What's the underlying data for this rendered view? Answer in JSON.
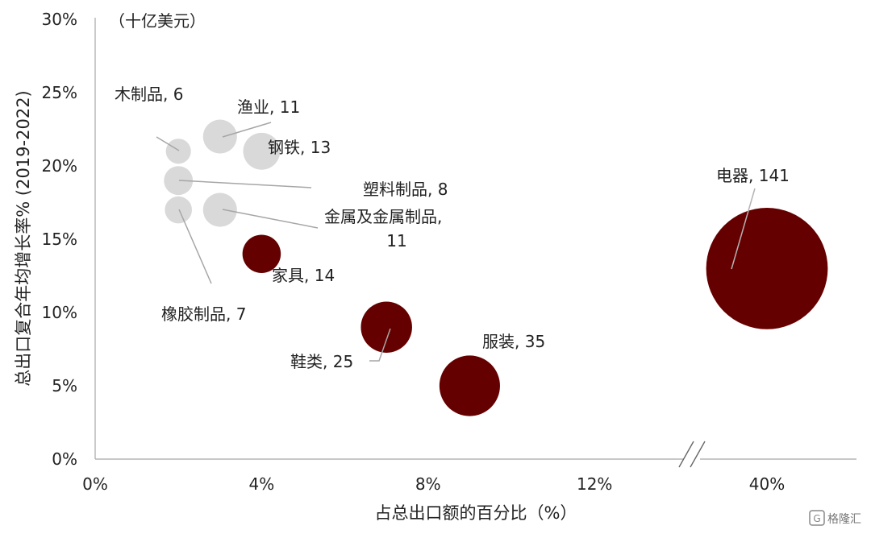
{
  "chart_data": {
    "type": "scatter",
    "subtype": "bubble",
    "unit_note": "（十亿美元）",
    "xlabel": "占总出口额的百分比（%）",
    "ylabel": "总出口复合年均增长率% (2019-2022)",
    "x_ticks": [
      "0%",
      "4%",
      "8%",
      "12%",
      "40%"
    ],
    "y_ticks": [
      "0%",
      "5%",
      "10%",
      "15%",
      "20%",
      "25%",
      "30%"
    ],
    "ylim": [
      0,
      30
    ],
    "x_axis_break": true,
    "grid": false,
    "colors": {
      "highlight": "#650000",
      "muted": "#d9d9d9",
      "leader": "#a6a6a6"
    },
    "points": [
      {
        "label": "木制品, 6",
        "x": 2,
        "y": 21,
        "size": 6,
        "group": "muted"
      },
      {
        "label": "渔业, 11",
        "x": 3,
        "y": 22,
        "size": 11,
        "group": "muted"
      },
      {
        "label": "钢铁, 13",
        "x": 4,
        "y": 21,
        "size": 13,
        "group": "muted"
      },
      {
        "label": "塑料制品, 8",
        "x": 2,
        "y": 19,
        "size": 8,
        "group": "muted"
      },
      {
        "label": "金属及金属制品,",
        "label_line2": "11",
        "x": 3,
        "y": 17,
        "size": 11,
        "group": "muted"
      },
      {
        "label": "橡胶制品, 7",
        "x": 2,
        "y": 17,
        "size": 7,
        "group": "muted"
      },
      {
        "label": "家具, 14",
        "x": 4,
        "y": 14,
        "size": 14,
        "group": "highlight"
      },
      {
        "label": "鞋类, 25",
        "x": 7,
        "y": 9,
        "size": 25,
        "group": "highlight"
      },
      {
        "label": "服装, 35",
        "x": 9,
        "y": 5,
        "size": 35,
        "group": "highlight"
      },
      {
        "label": "电器, 141",
        "x": 40,
        "y": 13,
        "size": 141,
        "group": "highlight"
      }
    ]
  },
  "watermark": "格隆汇"
}
